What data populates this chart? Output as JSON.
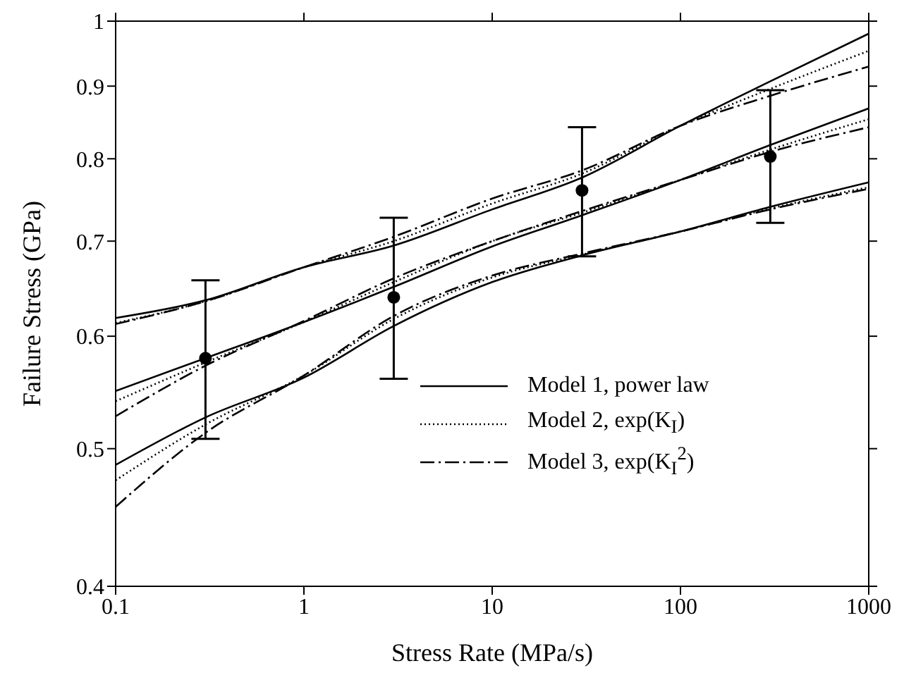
{
  "chart_data": {
    "type": "line",
    "xlabel": "Stress Rate (MPa/s)",
    "ylabel": "Failure Stress (GPa)",
    "log": "xy",
    "xlim": [
      0.1,
      1000
    ],
    "xticks": [
      0.1,
      1,
      10,
      100,
      1000
    ],
    "ylim": [
      0.4,
      1
    ],
    "yticks": [
      0.4,
      0.5,
      0.6,
      0.7,
      0.8,
      0.9,
      1
    ],
    "grid": false,
    "legend": "bottom right",
    "series": [
      {
        "name": "Model 1, power law",
        "color": "#000000",
        "line_style": "solid",
        "marker": "none",
        "x": [
          0.1,
          0.3,
          1,
          3,
          10,
          30,
          100,
          300,
          1000
        ],
        "values": [
          0.549,
          0.579,
          0.614,
          0.65,
          0.694,
          0.73,
          0.773,
          0.818,
          0.868
        ]
      },
      {
        "name": "Model 2, exp(K$_{I}$)",
        "color": "#000000",
        "line_style": "dotted",
        "marker": "none",
        "x": [
          0.1,
          0.3,
          1,
          3,
          10,
          30,
          100,
          300,
          1000
        ],
        "values": [
          0.54,
          0.575,
          0.614,
          0.655,
          0.7,
          0.733,
          0.773,
          0.812,
          0.853
        ]
      },
      {
        "name": "Model 3, exp(K$_{I}$$^{2}$)",
        "color": "#000000",
        "line_style": "dashdot",
        "marker": "none",
        "x": [
          0.1,
          0.3,
          1,
          3,
          10,
          30,
          100,
          300,
          1000
        ],
        "values": [
          0.527,
          0.572,
          0.615,
          0.659,
          0.7,
          0.735,
          0.773,
          0.809,
          0.842
        ]
      },
      {
        "type": "line",
        "color": "#000000",
        "line_style": "solid",
        "marker": "none",
        "x": [
          0.1,
          0.3,
          1,
          3,
          10,
          30,
          100,
          300,
          1000
        ],
        "values": [
          0.618,
          0.636,
          0.671,
          0.695,
          0.737,
          0.776,
          0.844,
          0.907,
          0.98
        ]
      },
      {
        "type": "line",
        "color": "#000000",
        "line_style": "dotted",
        "marker": "none",
        "x": [
          0.1,
          0.3,
          1,
          3,
          10,
          30,
          100,
          300,
          1000
        ],
        "values": [
          0.613,
          0.635,
          0.671,
          0.7,
          0.744,
          0.781,
          0.844,
          0.896,
          0.953
        ]
      },
      {
        "type": "line",
        "color": "#000000",
        "line_style": "dashdot",
        "marker": "none",
        "x": [
          0.1,
          0.3,
          1,
          3,
          10,
          30,
          100,
          300,
          1000
        ],
        "values": [
          0.612,
          0.635,
          0.671,
          0.705,
          0.75,
          0.785,
          0.844,
          0.886,
          0.929
        ]
      },
      {
        "type": "line",
        "color": "#000000",
        "line_style": "solid",
        "marker": "none",
        "x": [
          0.1,
          0.3,
          1,
          3,
          10,
          30,
          100,
          300,
          1000
        ],
        "values": [
          0.487,
          0.526,
          0.561,
          0.61,
          0.655,
          0.684,
          0.711,
          0.74,
          0.77
        ]
      },
      {
        "type": "line",
        "color": "#000000",
        "line_style": "dotted",
        "marker": "none",
        "x": [
          0.1,
          0.3,
          1,
          3,
          10,
          30,
          100,
          300,
          1000
        ],
        "values": [
          0.475,
          0.52,
          0.563,
          0.617,
          0.66,
          0.685,
          0.711,
          0.738,
          0.764
        ]
      },
      {
        "type": "line",
        "color": "#000000",
        "line_style": "dashdot",
        "marker": "none",
        "x": [
          0.1,
          0.3,
          1,
          3,
          10,
          30,
          100,
          300,
          1000
        ],
        "values": [
          0.455,
          0.513,
          0.563,
          0.62,
          0.662,
          0.686,
          0.711,
          0.737,
          0.762
        ]
      },
      {
        "type": "scatter",
        "color": "#000000",
        "marker": "circle",
        "x": [
          0.3,
          3,
          30,
          300
        ],
        "values": [
          0.579,
          0.639,
          0.76,
          0.803
        ],
        "errors": [
          [
            0.508,
            0.657
          ],
          [
            0.56,
            0.727
          ],
          [
            0.683,
            0.842
          ],
          [
            0.721,
            0.894
          ]
        ]
      }
    ]
  }
}
